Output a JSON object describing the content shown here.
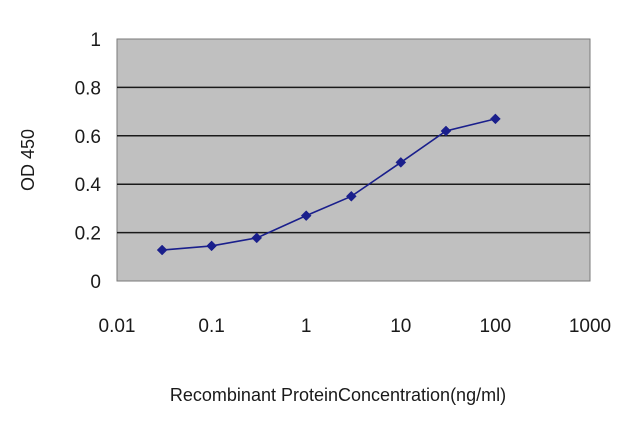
{
  "chart_data": {
    "type": "line",
    "title": "",
    "xlabel": "Recombinant ProteinConcentration(ng/ml)",
    "ylabel": "OD 450",
    "xscale": "log",
    "xlim": [
      0.01,
      1000
    ],
    "ylim": [
      0,
      1
    ],
    "x_ticks": [
      "0.01",
      "0.1",
      "1",
      "10",
      "100",
      "1000"
    ],
    "y_ticks": [
      "0",
      "0.2",
      "0.4",
      "0.6",
      "0.8",
      "1"
    ],
    "grid": "horizontal",
    "legend": "none",
    "series": [
      {
        "color": "#1a1f8c",
        "marker": "diamond",
        "x": [
          0.03,
          0.1,
          0.3,
          1,
          3,
          10,
          30,
          100
        ],
        "y": [
          0.128,
          0.145,
          0.178,
          0.27,
          0.35,
          0.49,
          0.62,
          0.67
        ]
      }
    ],
    "plot_background": "#c0c0c0",
    "gridline_color": "#1a1a1a"
  }
}
